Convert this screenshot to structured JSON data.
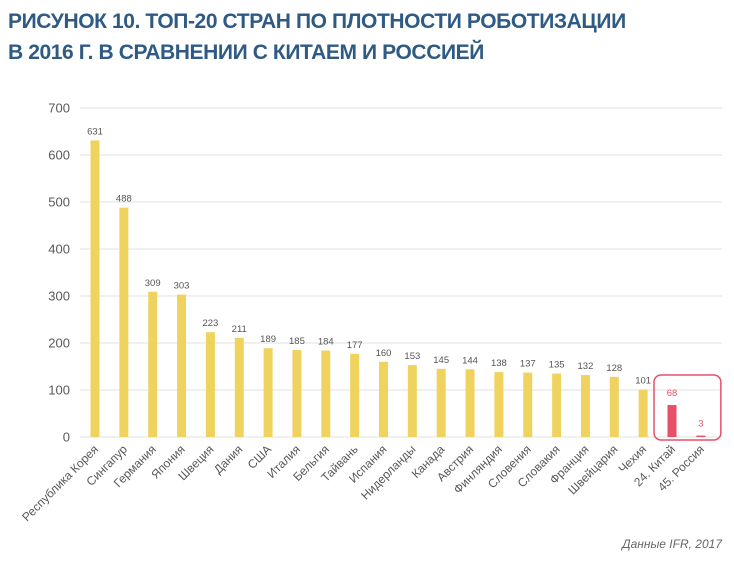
{
  "title_lines": [
    "РИСУНОК 10. ТОП-20 СТРАН ПО ПЛОТНОСТИ РОБОТИЗАЦИИ",
    "В 2016 Г. В СРАВНЕНИИ С КИТАЕМ И РОССИЕЙ"
  ],
  "source": "Данные IFR, 2017",
  "colors": {
    "bar": "#f0d35f",
    "highlight": "#e8506a",
    "grid": "#e2e2e2",
    "axis_text": "#595959",
    "label_text": "#555555",
    "title": "#2e5a84"
  },
  "chart_data": {
    "type": "bar",
    "title": "РИСУНОК 10. ТОП-20 СТРАН ПО ПЛОТНОСТИ РОБОТИЗАЦИИ В 2016 Г. В СРАВНЕНИИ С КИТАЕМ И РОССИЕЙ",
    "xlabel": "",
    "ylabel": "",
    "ylim": [
      0,
      700
    ],
    "yticks": [
      0,
      100,
      200,
      300,
      400,
      500,
      600,
      700
    ],
    "grid": true,
    "categories": [
      "Республика Корея",
      "Сингапур",
      "Германия",
      "Япония",
      "Швеция",
      "Дания",
      "США",
      "Италия",
      "Бельгия",
      "Тайвань",
      "Испания",
      "Нидерланды",
      "Канада",
      "Австрия",
      "Финляндия",
      "Словения",
      "Словакия",
      "Франция",
      "Швейцария",
      "Чехия",
      "24. Китай",
      "45. Россия"
    ],
    "values": [
      631,
      488,
      309,
      303,
      223,
      211,
      189,
      185,
      184,
      177,
      160,
      153,
      145,
      144,
      138,
      137,
      135,
      132,
      128,
      101,
      68,
      3
    ],
    "highlighted": [
      "24. Китай",
      "45. Россия"
    ]
  }
}
